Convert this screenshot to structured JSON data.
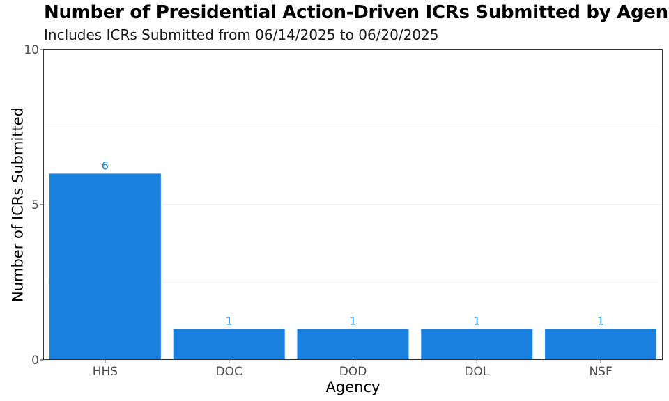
{
  "chart_data": {
    "type": "bar",
    "title": "Number of Presidential Action-Driven ICRs Submitted by Agency",
    "subtitle": "Includes ICRs Submitted from 06/14/2025 to 06/20/2025",
    "xlabel": "Agency",
    "ylabel": "Number of ICRs Submitted",
    "categories": [
      "HHS",
      "DOC",
      "DOD",
      "DOL",
      "NSF"
    ],
    "values": [
      6,
      1,
      1,
      1,
      1
    ],
    "data_labels": [
      "6",
      "1",
      "1",
      "1",
      "1"
    ],
    "ylim": [
      0,
      10
    ],
    "yticks": [
      0,
      5,
      10
    ],
    "ytick_labels": [
      "0",
      "5",
      "10"
    ],
    "grid": true,
    "legend": "none",
    "colors": {
      "bar": "#1a80e0",
      "label": "#1a80d6",
      "grid": "#ebebeb",
      "panel_border": "#333333"
    }
  }
}
